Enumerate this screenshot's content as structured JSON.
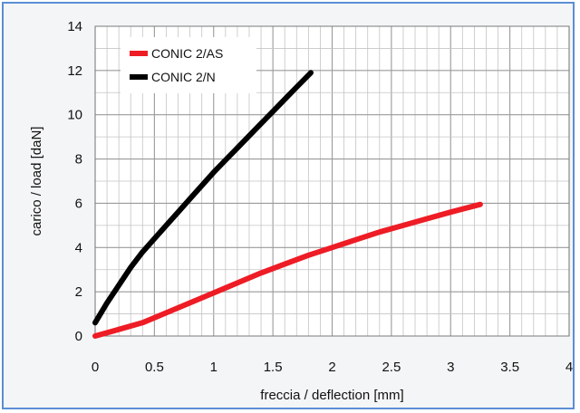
{
  "chart_data": {
    "type": "line",
    "xlabel": "freccia / deflection [mm]",
    "ylabel": "carico / load [daN]",
    "xlim": [
      0,
      4
    ],
    "ylim": [
      0,
      14
    ],
    "xticks": [
      "0",
      "0.5",
      "1",
      "1.5",
      "2",
      "2.5",
      "3",
      "3.5",
      "4"
    ],
    "yticks": [
      "0",
      "2",
      "4",
      "6",
      "8",
      "10",
      "12",
      "14"
    ],
    "grid": true,
    "minor_grid_x": 0.1,
    "minor_grid_y": 1,
    "legend_position": "top-left",
    "series": [
      {
        "name": "CONIC 2/AS",
        "color": "#ee1c25",
        "x": [
          0,
          0.2,
          0.4,
          0.6,
          0.8,
          1.0,
          1.2,
          1.4,
          1.6,
          1.8,
          2.0,
          2.2,
          2.4,
          2.6,
          2.8,
          3.0,
          3.25
        ],
        "y": [
          0,
          0.3,
          0.6,
          1.05,
          1.5,
          1.95,
          2.4,
          2.85,
          3.25,
          3.65,
          4.0,
          4.35,
          4.7,
          5.0,
          5.3,
          5.6,
          5.95
        ]
      },
      {
        "name": "CONIC 2/N",
        "color": "#000000",
        "x": [
          0,
          0.1,
          0.2,
          0.3,
          0.4,
          0.5,
          0.6,
          0.7,
          0.8,
          0.9,
          1.0,
          1.1,
          1.2,
          1.3,
          1.4,
          1.5,
          1.6,
          1.7,
          1.82
        ],
        "y": [
          0.6,
          1.5,
          2.3,
          3.1,
          3.8,
          4.4,
          5.0,
          5.6,
          6.2,
          6.8,
          7.4,
          7.95,
          8.5,
          9.05,
          9.6,
          10.15,
          10.7,
          11.25,
          11.9
        ]
      }
    ]
  }
}
